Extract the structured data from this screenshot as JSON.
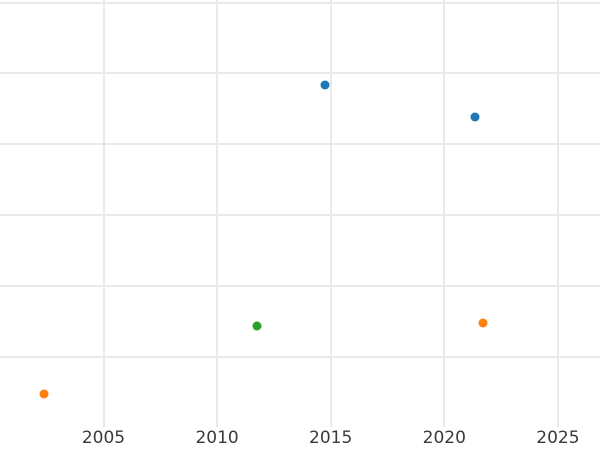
{
  "chart_data": {
    "type": "scatter",
    "title": "",
    "xlabel": "",
    "ylabel": "",
    "grid": true,
    "legend_position": "none",
    "x_tick_labels": [
      "2005",
      "2010",
      "2015",
      "2020",
      "2025"
    ],
    "x_ticks": [
      2005,
      2010,
      2015,
      2020,
      2025
    ],
    "y_tick_labels_visible": false,
    "y_gridline_units": [
      0,
      1,
      2,
      3,
      4,
      5,
      6
    ],
    "x_range_visible": [
      2000.4,
      2026.9
    ],
    "y_range_visible_units": [
      -0.32,
      6.04
    ],
    "series": [
      {
        "name": "series-blue",
        "color": "#1f77b4",
        "points": [
          {
            "x": 2014.73,
            "y": 4.84
          },
          {
            "x": 2021.35,
            "y": 4.39
          }
        ]
      },
      {
        "name": "series-orange",
        "color": "#ff7f0e",
        "points": [
          {
            "x": 2002.4,
            "y": 0.47
          },
          {
            "x": 2021.71,
            "y": 1.48
          }
        ]
      },
      {
        "name": "series-green",
        "color": "#2ca02c",
        "points": [
          {
            "x": 2011.77,
            "y": 1.44
          }
        ]
      }
    ],
    "colors": {
      "background": "#ffffff",
      "gridline": "#e9e9e9",
      "tick_label": "#3a3a3a"
    }
  }
}
